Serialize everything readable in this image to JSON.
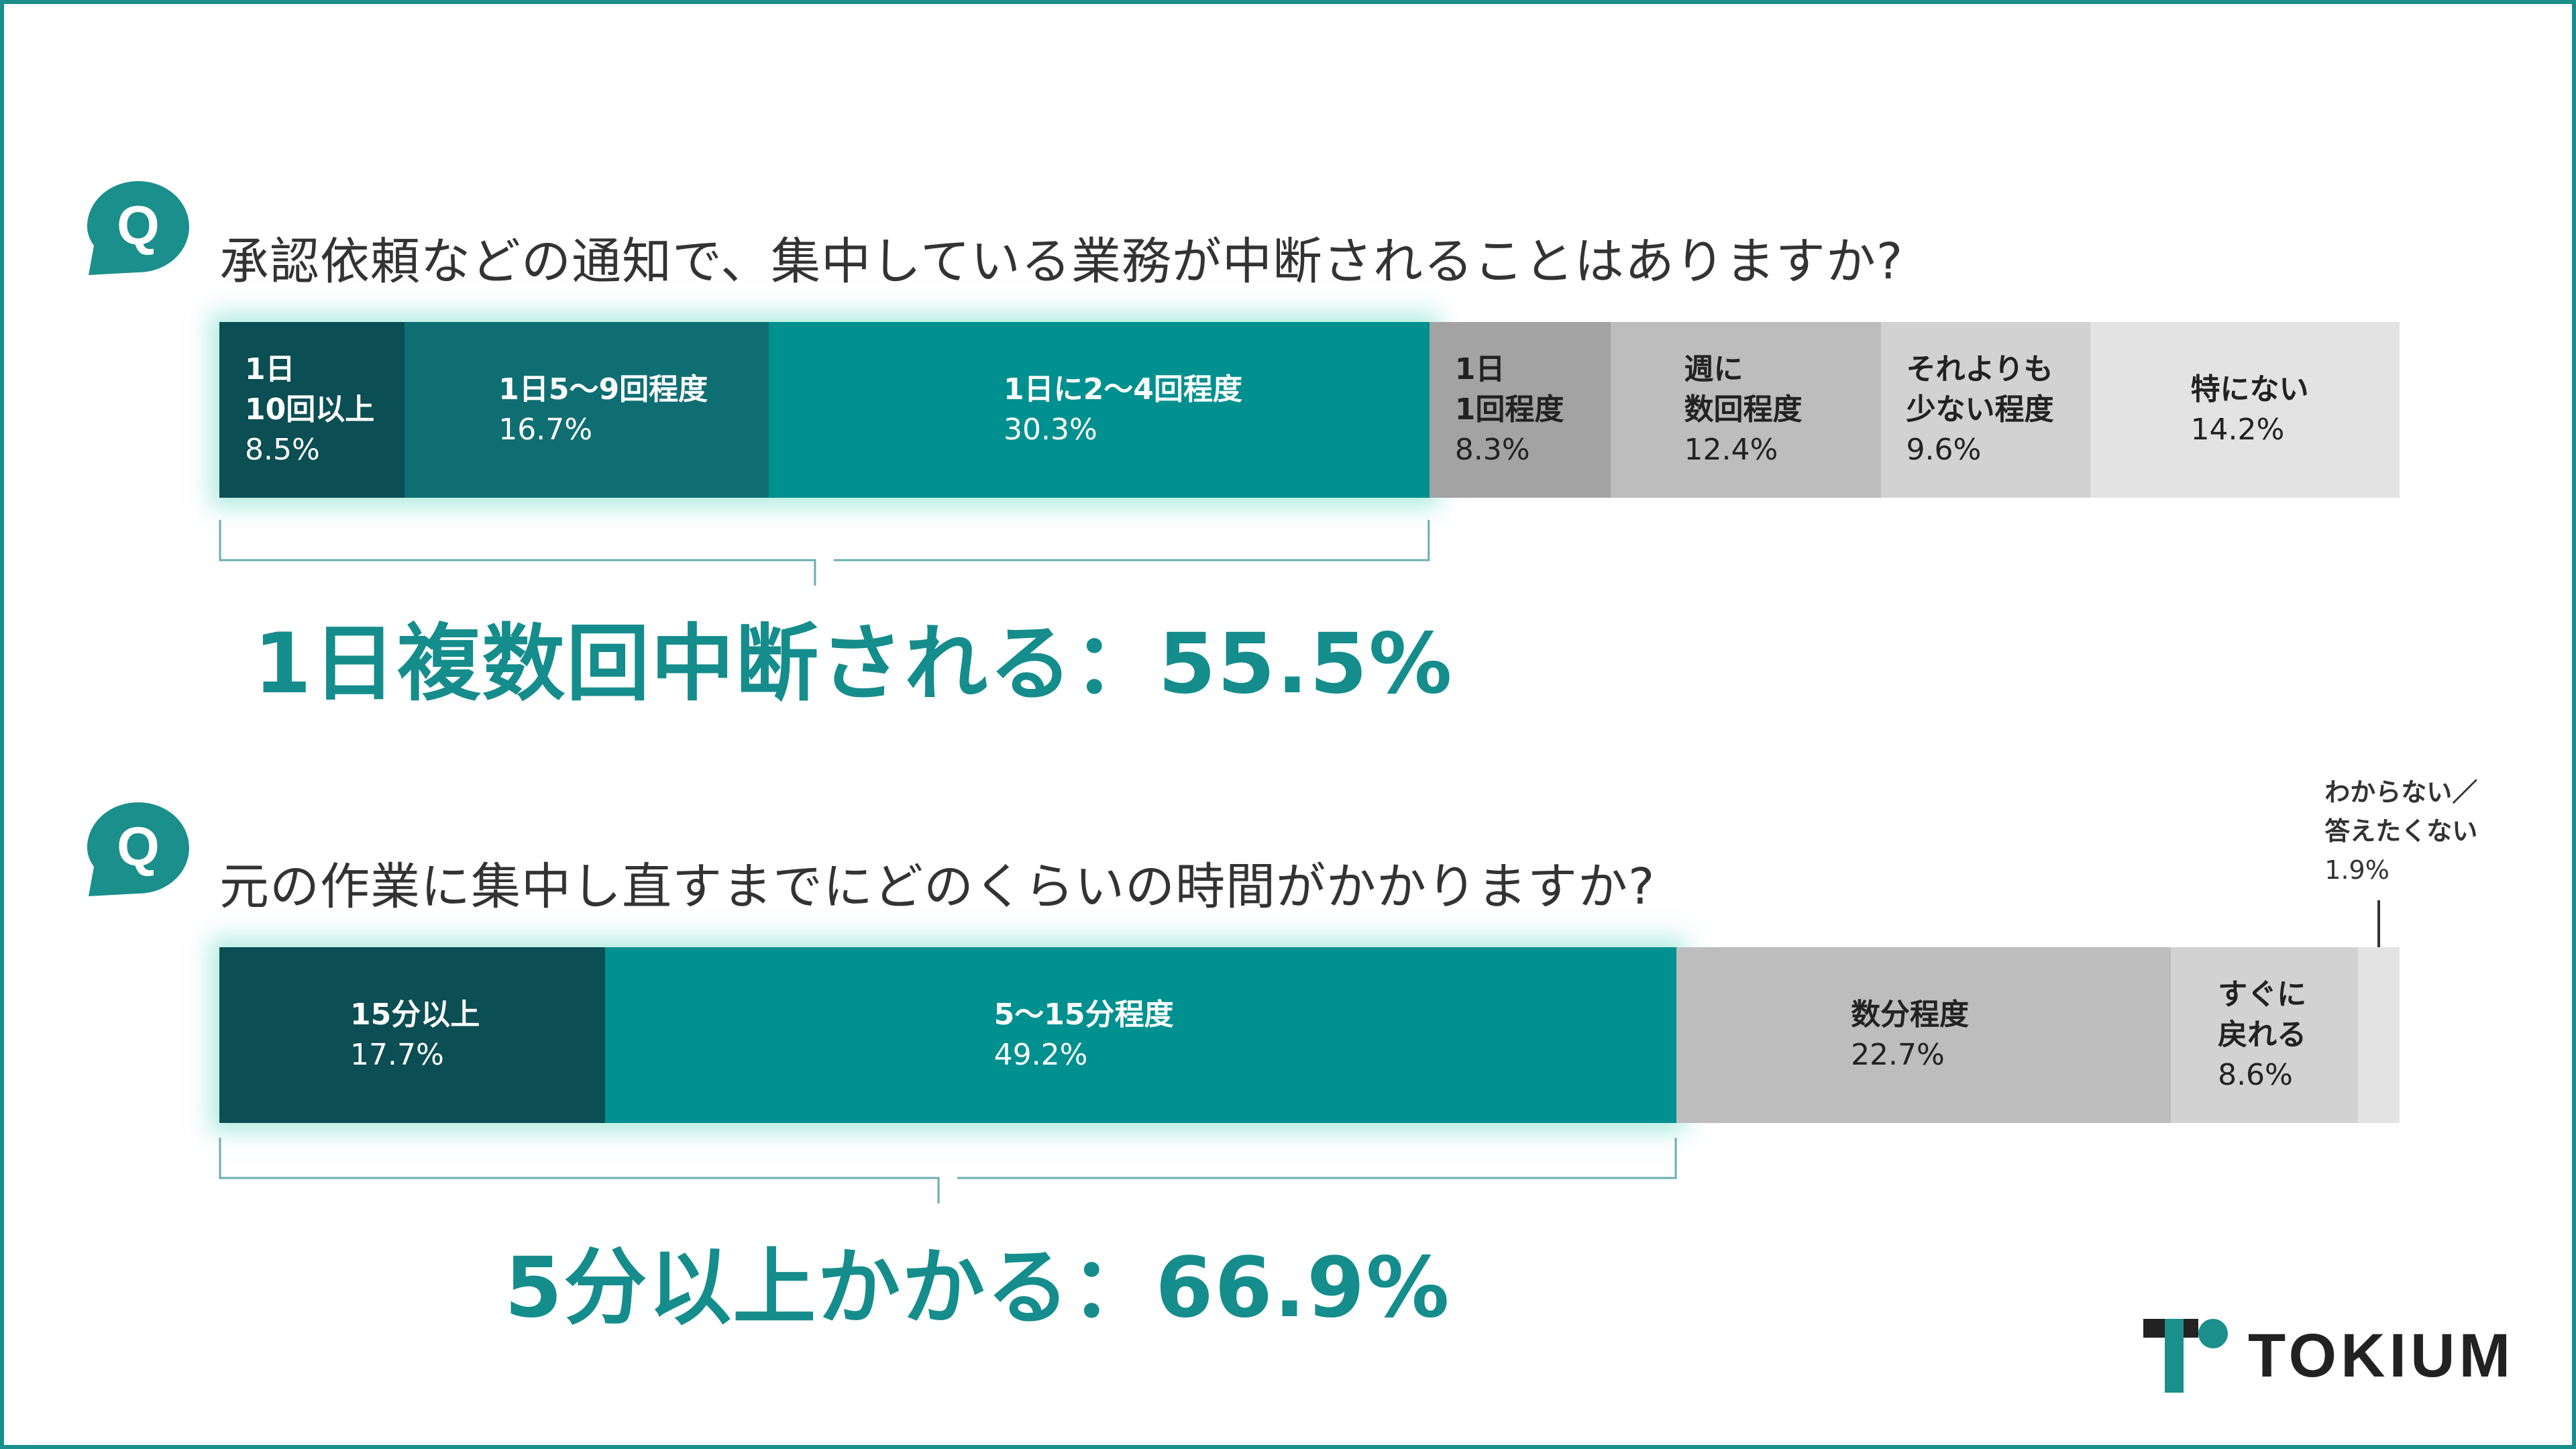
{
  "colors": {
    "frame": "#1b8f8c",
    "accent": "#158d8c",
    "dark_teal": "#0b4e53",
    "mid_teal": "#0f6e72",
    "teal": "#00908f",
    "gray_dark": "#a3a3a3",
    "gray_mid": "#bdbdbd",
    "gray_light": "#d2d2d2",
    "gray_lightest": "#e3e3e3",
    "text_dark": "#333333"
  },
  "chart_data": [
    {
      "type": "bar",
      "orientation": "horizontal-stacked-100",
      "title": "承認依頼などの通知で、集中している業務が中断されることはありますか?",
      "unit": "%",
      "series": [
        {
          "name": "1日10回以上",
          "label_lines": [
            "1日",
            "10回以上"
          ],
          "value": 8.5,
          "value_text": "8.5%",
          "color": "#0b4e53",
          "text_color": "#ffffff"
        },
        {
          "name": "1日5〜9回程度",
          "label_lines": [
            "1日5〜9回程度"
          ],
          "value": 16.7,
          "value_text": "16.7%",
          "color": "#0f6e72",
          "text_color": "#ffffff"
        },
        {
          "name": "1日に2〜4回程度",
          "label_lines": [
            "1日に2〜4回程度"
          ],
          "value": 30.3,
          "value_text": "30.3%",
          "color": "#00908f",
          "text_color": "#ffffff"
        },
        {
          "name": "1日1回程度",
          "label_lines": [
            "1日",
            "1回程度"
          ],
          "value": 8.3,
          "value_text": "8.3%",
          "color": "#a3a3a3",
          "text_color": "#222222"
        },
        {
          "name": "週に数回程度",
          "label_lines": [
            "週に",
            "数回程度"
          ],
          "value": 12.4,
          "value_text": "12.4%",
          "color": "#bdbdbd",
          "text_color": "#222222"
        },
        {
          "name": "それよりも少ない程度",
          "label_lines": [
            "それよりも",
            "少ない程度"
          ],
          "value": 9.6,
          "value_text": "9.6%",
          "color": "#d2d2d2",
          "text_color": "#222222"
        },
        {
          "name": "特にない",
          "label_lines": [
            "特にない"
          ],
          "value": 14.2,
          "value_text": "14.2%",
          "color": "#e3e3e3",
          "text_color": "#222222"
        }
      ],
      "highlight_count": 3,
      "summary": "1日複数回中断される：55.5%"
    },
    {
      "type": "bar",
      "orientation": "horizontal-stacked-100",
      "title": "元の作業に集中し直すまでにどのくらいの時間がかかりますか?",
      "unit": "%",
      "series": [
        {
          "name": "15分以上",
          "label_lines": [
            "15分以上"
          ],
          "value": 17.7,
          "value_text": "17.7%",
          "color": "#0b4e53",
          "text_color": "#ffffff"
        },
        {
          "name": "5〜15分程度",
          "label_lines": [
            "5〜15分程度"
          ],
          "value": 49.2,
          "value_text": "49.2%",
          "color": "#00908f",
          "text_color": "#ffffff"
        },
        {
          "name": "数分程度",
          "label_lines": [
            "数分程度"
          ],
          "value": 22.7,
          "value_text": "22.7%",
          "color": "#bdbdbd",
          "text_color": "#222222"
        },
        {
          "name": "すぐに戻れる",
          "label_lines": [
            "すぐに",
            "戻れる"
          ],
          "value": 8.6,
          "value_text": "8.6%",
          "color": "#d2d2d2",
          "text_color": "#222222"
        },
        {
          "name": "わからない／答えたくない",
          "label_lines": [
            "わからない／",
            "答えたくない"
          ],
          "value": 1.9,
          "value_text": "1.9%",
          "color": "#e3e3e3",
          "text_color": "#222222",
          "label_outside": true
        }
      ],
      "highlight_count": 2,
      "summary": "5分以上かかる：66.9%"
    }
  ],
  "badge": {
    "letter": "Q"
  },
  "logo": {
    "text": "TOKIUM"
  }
}
